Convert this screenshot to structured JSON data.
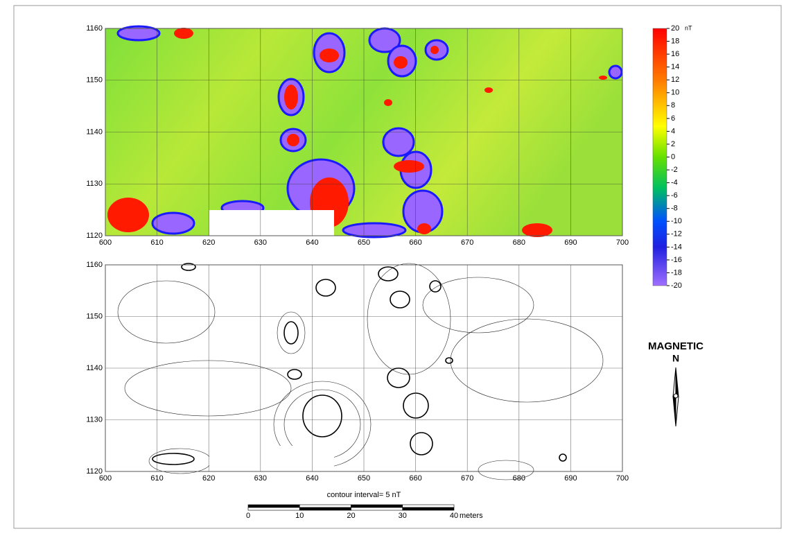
{
  "panels": [
    {
      "xticks": [
        600,
        610,
        620,
        630,
        640,
        650,
        660,
        670,
        680,
        690,
        700
      ],
      "yticks": [
        1120,
        1130,
        1140,
        1150,
        1160
      ]
    },
    {
      "xticks": [
        600,
        610,
        620,
        630,
        640,
        650,
        660,
        670,
        680,
        690,
        700
      ],
      "yticks": [
        1120,
        1130,
        1140,
        1150,
        1160
      ],
      "note": "contour interval= 5 nT"
    }
  ],
  "colorbar": {
    "unit": "nT",
    "ticks": [
      20,
      18,
      16,
      14,
      12,
      10,
      8,
      6,
      4,
      2,
      0,
      -2,
      -4,
      -6,
      -8,
      -10,
      -12,
      -14,
      -16,
      -18,
      -20
    ]
  },
  "scale_bar": {
    "ticks": [
      0,
      10,
      20,
      30,
      40
    ],
    "unit": "meters"
  },
  "north_arrow": {
    "title": "MAGNETIC",
    "letter": "N"
  }
}
